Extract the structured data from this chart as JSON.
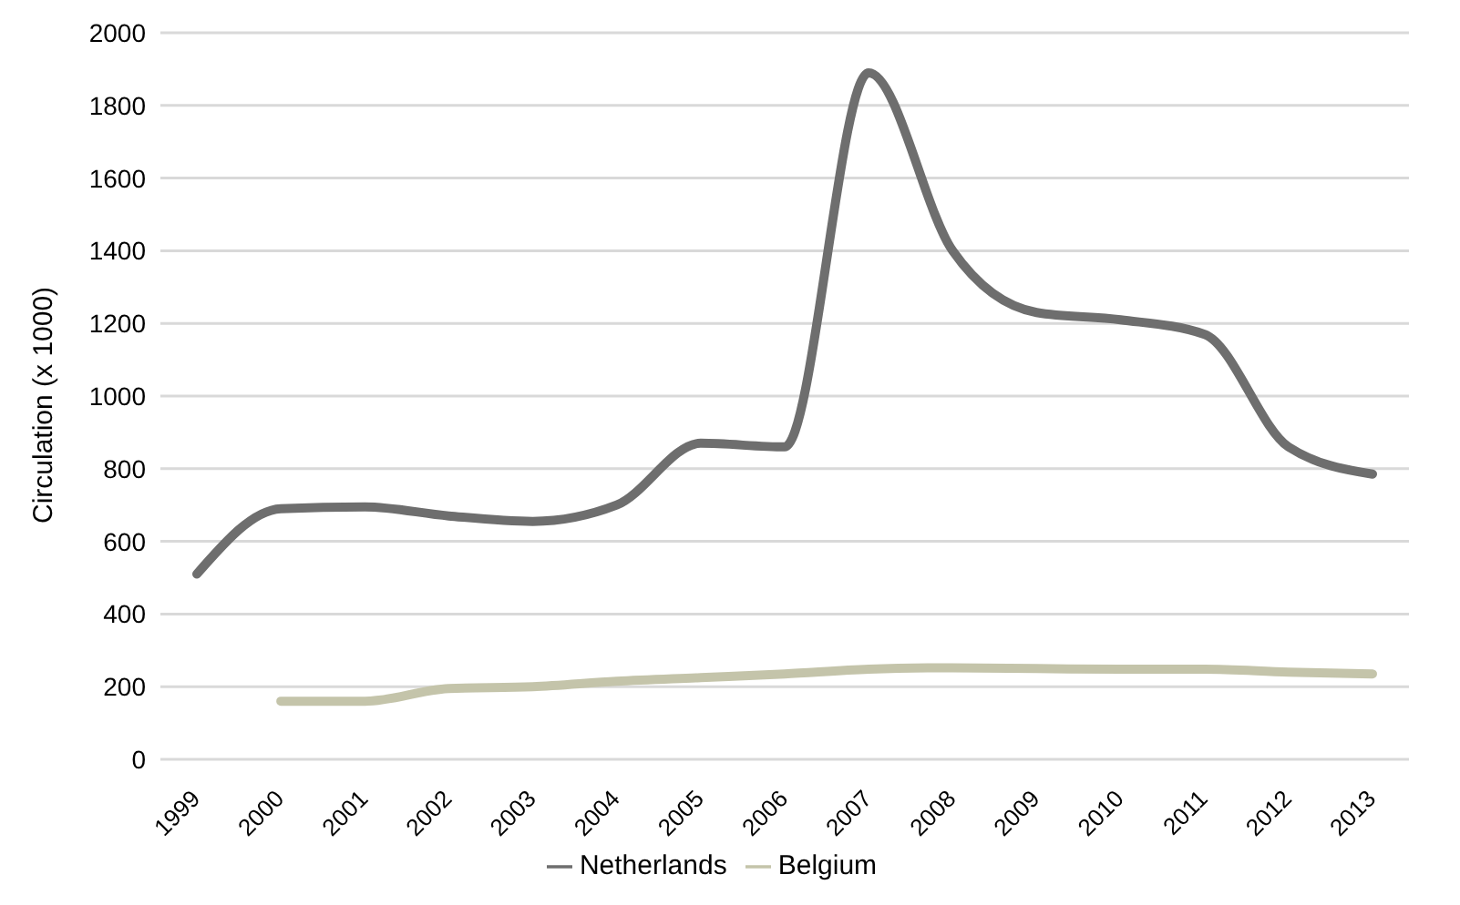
{
  "chart_data": {
    "type": "line",
    "ylabel": "Circulation (x 1000)",
    "categories": [
      "1999",
      "2000",
      "2001",
      "2002",
      "2003",
      "2004",
      "2005",
      "2006",
      "2007",
      "2008",
      "2009",
      "2010",
      "2011",
      "2012",
      "2013"
    ],
    "series": [
      {
        "name": "Netherlands",
        "color": "#6e6e6e",
        "values": [
          510,
          690,
          695,
          670,
          655,
          700,
          870,
          860,
          1890,
          1400,
          1230,
          1210,
          1170,
          860,
          785
        ]
      },
      {
        "name": "Belgium",
        "color": "#c4c4aa",
        "values": [
          null,
          160,
          160,
          195,
          200,
          215,
          225,
          235,
          248,
          252,
          250,
          248,
          248,
          240,
          235
        ]
      }
    ],
    "ylim": [
      0,
      2000
    ],
    "yticks": [
      0,
      200,
      400,
      600,
      800,
      1000,
      1200,
      1400,
      1600,
      1800,
      2000
    ],
    "grid": "y",
    "legend": "bottom",
    "marker": "none",
    "line_style": "solid"
  }
}
